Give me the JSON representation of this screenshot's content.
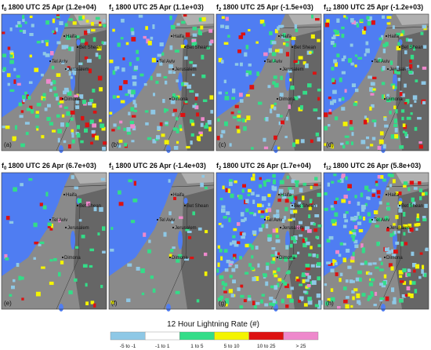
{
  "panels": [
    {
      "symbol": "f",
      "sub": "0",
      "text": "1800 UTC 25 Apr (1.2e+04)",
      "label": "(a)"
    },
    {
      "symbol": "f",
      "sub": "1",
      "text": "1800 UTC 25 Apr (1.1e+03)",
      "label": "(b)"
    },
    {
      "symbol": "f",
      "sub": "2",
      "text": "1800 UTC 25 Apr (-1.5e+03)",
      "label": "(c)"
    },
    {
      "symbol": "f",
      "sub": "12",
      "text": "1800 UTC 25 Apr (-1.2e+03)",
      "label": "(d)"
    },
    {
      "symbol": "f",
      "sub": "0",
      "text": "1800 UTC 26 Apr (6.7e+03)",
      "label": "(e)"
    },
    {
      "symbol": "f",
      "sub": "1",
      "text": "1800 UTC 26 Apr (-1.4e+03)",
      "label": "(f)"
    },
    {
      "symbol": "f",
      "sub": "2",
      "text": "1800 UTC 26 Apr (1.7e+04)",
      "label": "(g)"
    },
    {
      "symbol": "f",
      "sub": "12",
      "text": "1800 UTC 26 Apr (5.8e+03)",
      "label": "(h)"
    }
  ],
  "cities": [
    "Haifa",
    "Bet Shean",
    "Tel Aviv",
    "Jerusalem",
    "Dimona"
  ],
  "colorbar": {
    "title": "12 Hour Lightning Rate (#)",
    "bins": [
      {
        "label": "-5 to -1",
        "color": "#8ec8e6"
      },
      {
        "label": "-1 to 1",
        "color": "#ffffff"
      },
      {
        "label": "1 to 5",
        "color": "#33dd88"
      },
      {
        "label": "5 to 10",
        "color": "#f4f400"
      },
      {
        "label": "10 to 25",
        "color": "#dd1111"
      },
      {
        "label": "> 25",
        "color": "#ee88cc"
      }
    ]
  }
}
